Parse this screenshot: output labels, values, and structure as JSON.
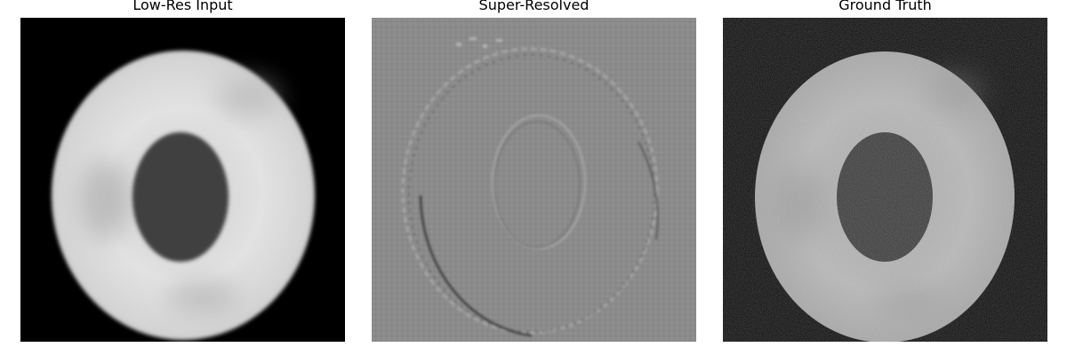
{
  "panels": [
    {
      "title": "Low-Res Input",
      "background": "#000000"
    },
    {
      "title": "Super-Resolved",
      "background": "#8a8a8a"
    },
    {
      "title": "Ground Truth",
      "background": "#0a0a0a"
    }
  ]
}
